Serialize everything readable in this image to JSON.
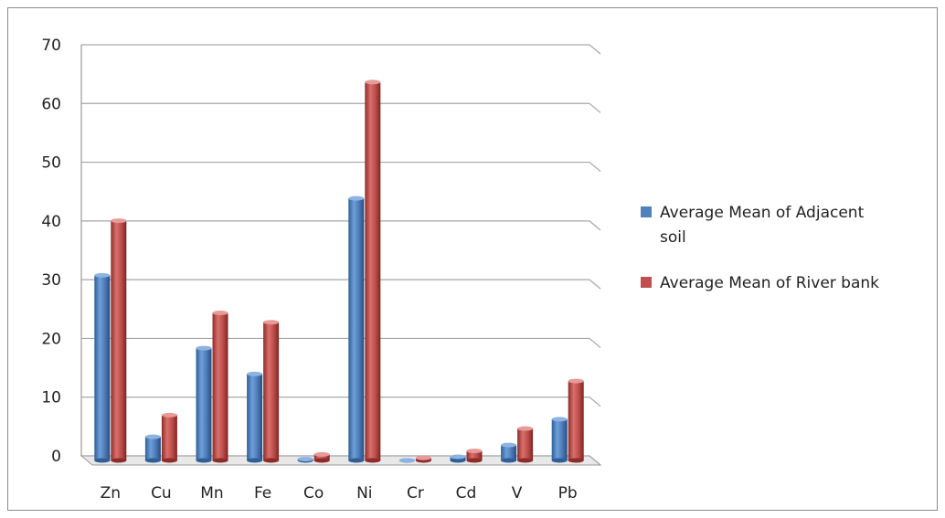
{
  "chart_data": {
    "type": "bar",
    "title": "",
    "xlabel": "",
    "ylabel": "",
    "categories": [
      "Zn",
      "Cu",
      "Mn",
      "Fe",
      "Co",
      "Ni",
      "Cr",
      "Cd",
      "V",
      "Pb"
    ],
    "series": [
      {
        "name": "Average Mean of Adjacent soil",
        "color": "#4f81bd",
        "values": [
          32.3,
          4.8,
          19.9,
          15.5,
          1.0,
          45.4,
          0.8,
          1.4,
          3.4,
          7.8
        ]
      },
      {
        "name": "Average Mean of River bank",
        "color": "#c0504d",
        "values": [
          41.6,
          8.5,
          25.9,
          24.3,
          1.8,
          65.2,
          1.2,
          2.4,
          6.2,
          14.3
        ]
      }
    ],
    "ylim": [
      0,
      70
    ],
    "yticks": [
      0,
      10,
      20,
      30,
      40,
      50,
      60,
      70
    ],
    "grid": true,
    "legend_position": "right",
    "style": "3d-cylinder"
  }
}
